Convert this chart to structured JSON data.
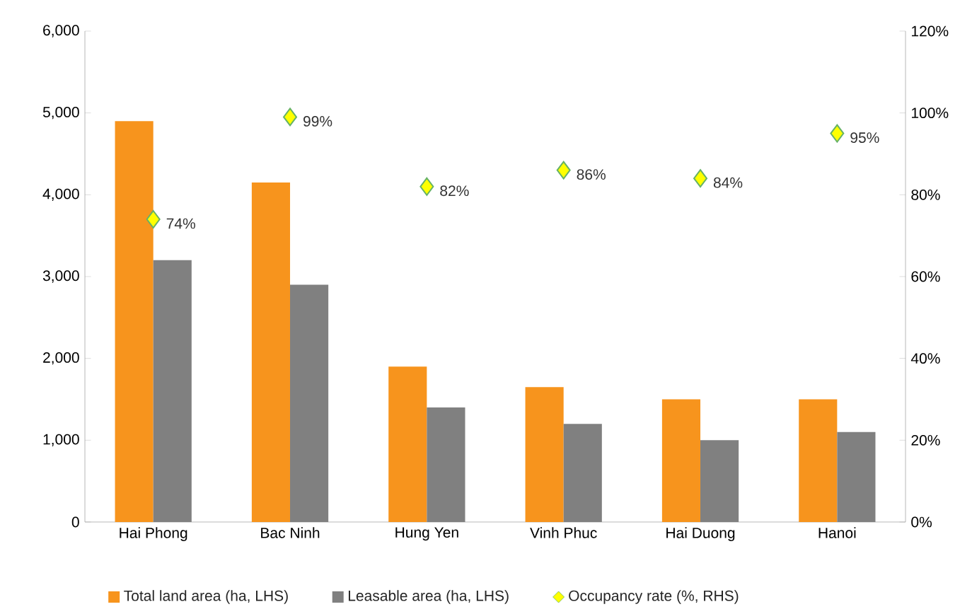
{
  "chart_data": {
    "type": "bar",
    "categories": [
      "Hai Phong",
      "Bac Ninh",
      "Hung Yen",
      "Vinh Phuc",
      "Hai Duong",
      "Hanoi"
    ],
    "series": [
      {
        "name": "Total land area (ha, LHS)",
        "color": "#f7941d",
        "values": [
          4900,
          4150,
          1900,
          1650,
          1500,
          1500
        ]
      },
      {
        "name": "Leasable area (ha, LHS)",
        "color": "#808080",
        "values": [
          3200,
          2900,
          1400,
          1200,
          1000,
          1100
        ]
      },
      {
        "name": "Occupancy rate (%, RHS)",
        "type": "scatter",
        "axis": "y2",
        "color": "#ffff00",
        "values": [
          74,
          99,
          82,
          86,
          84,
          95
        ],
        "value_labels": [
          "74%",
          "99%",
          "82%",
          "86%",
          "84%",
          "95%"
        ]
      }
    ],
    "ylim": [
      0,
      6000
    ],
    "yticks": [
      0,
      {
        "value": 1000,
        "label": "1,000"
      },
      {
        "value": 2000,
        "label": "2,000"
      },
      {
        "value": 3000,
        "label": "3,000"
      },
      {
        "value": 4000,
        "label": "4,000"
      },
      {
        "value": 5000,
        "label": "5,000"
      },
      {
        "value": 6000,
        "label": "6,000"
      }
    ],
    "y2lim": [
      0,
      120
    ],
    "y2ticks": [
      {
        "value": 0,
        "label": "0%"
      },
      {
        "value": 20,
        "label": "20%"
      },
      {
        "value": 40,
        "label": "40%"
      },
      {
        "value": 60,
        "label": "60%"
      },
      {
        "value": 80,
        "label": "80%"
      },
      {
        "value": 100,
        "label": "100%"
      },
      {
        "value": 120,
        "label": "120%"
      }
    ],
    "marker": "diamond",
    "legend": "bottom"
  }
}
